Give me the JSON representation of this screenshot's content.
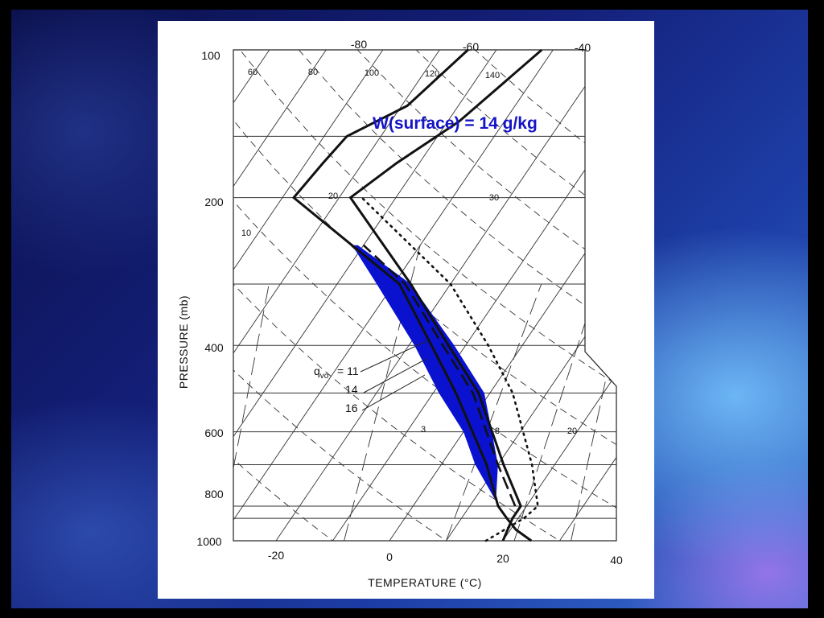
{
  "chart_data": {
    "type": "skew-t thermodynamic diagram",
    "annotation": "W(surface) = 14 g/kg",
    "xlabel": "TEMPERATURE (°C)",
    "ylabel": "PRESSURE (mb)",
    "x_ticks": [
      "-20",
      "0",
      "20",
      "40"
    ],
    "y_ticks": [
      "100",
      "200",
      "400",
      "600",
      "800",
      "1000"
    ],
    "top_ticks": [
      "-80",
      "-60",
      "-40"
    ],
    "dry_adiabat_labels": [
      "60",
      "80",
      "100",
      "120",
      "140"
    ],
    "mixing_ratio_labels": [
      "10",
      "20",
      "30",
      "3",
      "8",
      "20"
    ],
    "q_label": "q",
    "q_subscript": "vo",
    "q_values": [
      "= 11",
      "14",
      "16"
    ],
    "fill_color": "#0a12d0",
    "annotation_color": "#1414c8",
    "environment_profile": [
      {
        "p": 1000,
        "t": 25
      },
      {
        "p": 950,
        "t": 21
      },
      {
        "p": 900,
        "t": 18
      },
      {
        "p": 850,
        "t": 15
      },
      {
        "p": 700,
        "t": 8
      },
      {
        "p": 500,
        "t": -6
      },
      {
        "p": 400,
        "t": -16
      },
      {
        "p": 300,
        "t": -29
      },
      {
        "p": 200,
        "t": -58
      },
      {
        "p": 170,
        "t": -57
      },
      {
        "p": 150,
        "t": -56
      },
      {
        "p": 130,
        "t": -49
      },
      {
        "p": 100,
        "t": -45
      }
    ],
    "parcel_profile": [
      {
        "p": 1000,
        "t": 20
      },
      {
        "p": 900,
        "t": 19
      },
      {
        "p": 850,
        "t": 19
      },
      {
        "p": 700,
        "t": 11
      },
      {
        "p": 500,
        "t": -2
      },
      {
        "p": 400,
        "t": -13
      },
      {
        "p": 300,
        "t": -27
      },
      {
        "p": 200,
        "t": -48
      },
      {
        "p": 170,
        "t": -44
      },
      {
        "p": 140,
        "t": -38
      },
      {
        "p": 100,
        "t": -32
      }
    ],
    "dashed_parcel_profile": [
      {
        "p": 850,
        "t": 18
      },
      {
        "p": 700,
        "t": 10
      },
      {
        "p": 500,
        "t": -3
      },
      {
        "p": 400,
        "t": -14
      },
      {
        "p": 300,
        "t": -28
      },
      {
        "p": 250,
        "t": -40
      }
    ],
    "dotted_parcel_profile": [
      {
        "p": 1000,
        "t": 17
      },
      {
        "p": 900,
        "t": 21
      },
      {
        "p": 850,
        "t": 22
      },
      {
        "p": 700,
        "t": 16
      },
      {
        "p": 500,
        "t": 4
      },
      {
        "p": 400,
        "t": -6
      },
      {
        "p": 300,
        "t": -20
      },
      {
        "p": 200,
        "t": -46
      }
    ]
  }
}
